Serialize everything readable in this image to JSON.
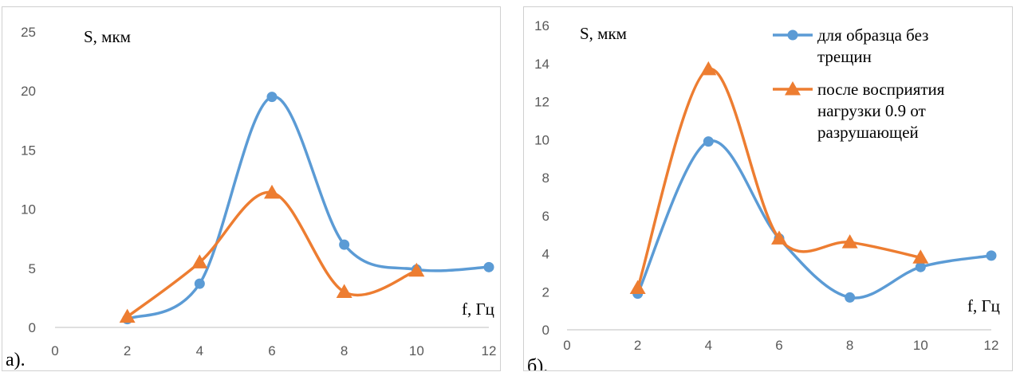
{
  "colors": {
    "series1": "#5b9bd5",
    "series2": "#ed7d31"
  },
  "chart_data": [
    {
      "type": "line",
      "panel_label": "а).",
      "ylabel": "S, мкм",
      "xlabel": "f, Гц",
      "xlim": [
        0,
        12
      ],
      "ylim": [
        0,
        25
      ],
      "xticks": [
        "0",
        "2",
        "4",
        "6",
        "8",
        "10",
        "12"
      ],
      "yticks": [
        "0",
        "5",
        "10",
        "15",
        "20",
        "25"
      ],
      "grid": false,
      "legend": "none",
      "series": [
        {
          "color": "#5b9bd5",
          "marker": "circle",
          "x": [
            2,
            4,
            6,
            8,
            10,
            12
          ],
          "y": [
            0.7,
            3.7,
            19.5,
            7.0,
            4.9,
            5.1
          ]
        },
        {
          "color": "#ed7d31",
          "marker": "triangle",
          "x": [
            2,
            4,
            6,
            8,
            10
          ],
          "y": [
            0.9,
            5.5,
            11.4,
            3.0,
            4.8
          ]
        }
      ]
    },
    {
      "type": "line",
      "panel_label": "б).",
      "ylabel": "S, мкм",
      "xlabel": "f, Гц",
      "xlim": [
        0,
        12
      ],
      "ylim": [
        0,
        16
      ],
      "xticks": [
        "0",
        "2",
        "4",
        "6",
        "8",
        "10",
        "12"
      ],
      "yticks": [
        "0",
        "2",
        "4",
        "6",
        "8",
        "10",
        "12",
        "14",
        "16"
      ],
      "grid": false,
      "legend": "top-right",
      "series": [
        {
          "name": "для образца без трещин",
          "legend_lines": [
            "для образца без",
            "трещин"
          ],
          "color": "#5b9bd5",
          "marker": "circle",
          "x": [
            2,
            4,
            6,
            8,
            10,
            12
          ],
          "y": [
            1.9,
            9.9,
            4.8,
            1.7,
            3.3,
            3.9
          ]
        },
        {
          "name": "после восприятия нагрузки 0.9 от разрушающей",
          "legend_lines": [
            "после восприятия",
            "нагрузки 0.9 от",
            "разрушающей"
          ],
          "color": "#ed7d31",
          "marker": "triangle",
          "x": [
            2,
            4,
            6,
            8,
            10
          ],
          "y": [
            2.2,
            13.7,
            4.8,
            4.6,
            3.8
          ]
        }
      ]
    }
  ]
}
